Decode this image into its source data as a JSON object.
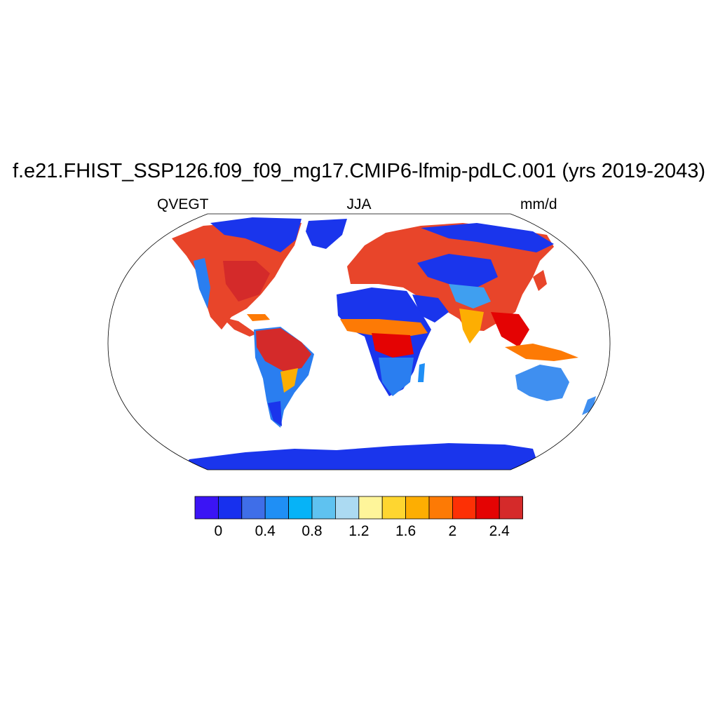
{
  "title": "f.e21.FHIST_SSP126.f09_f09_mg17.CMIP6-lfmip-pdLC.001 (yrs 2019-2043)",
  "left_label": "QVEGT",
  "center_label": "JJA",
  "right_label": "mm/d",
  "colorbar": {
    "colors": [
      "#3b14f5",
      "#1730ee",
      "#3f6ee8",
      "#1f8ff5",
      "#06b3f7",
      "#5fc2f0",
      "#acdaf2",
      "#fef59a",
      "#fed630",
      "#fdae02",
      "#fd7a05",
      "#fd3005",
      "#e40303",
      "#d52a2a"
    ],
    "tick_labels": [
      "0",
      "0.4",
      "0.8",
      "1.2",
      "1.6",
      "2",
      "2.4"
    ]
  }
}
